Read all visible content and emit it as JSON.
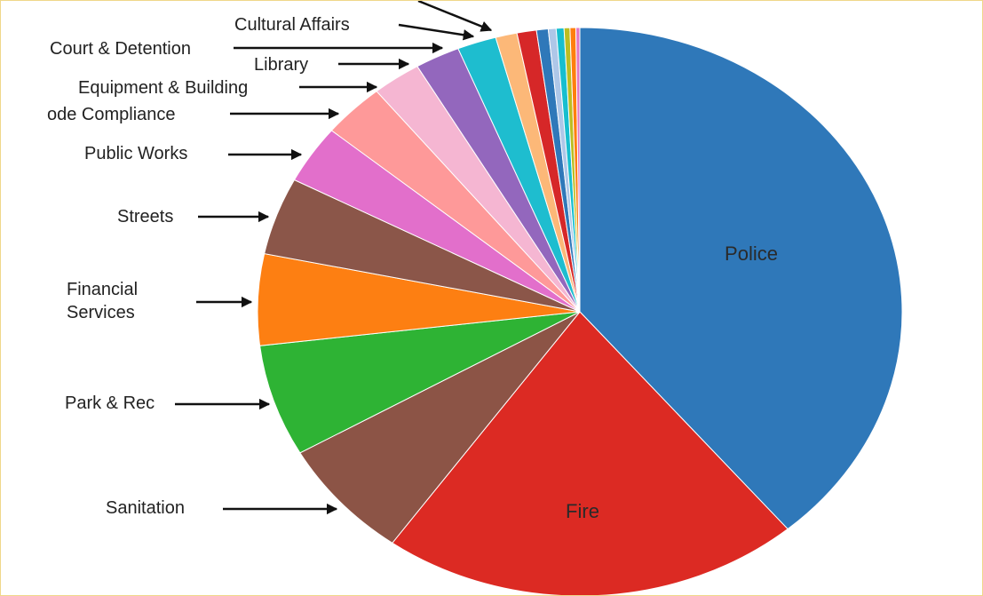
{
  "chart_data": {
    "type": "pie",
    "title": "",
    "slices": [
      {
        "label": "Police",
        "value": 39.7,
        "color": "#2f78b9",
        "label_placement": "inside"
      },
      {
        "label": "Fire",
        "value": 21.5,
        "color": "#dc2a23",
        "label_placement": "inside"
      },
      {
        "label": "Sanitation",
        "value": 7.0,
        "color": "#8c5446",
        "label_placement": "outside"
      },
      {
        "label": "Park & Rec",
        "value": 6.5,
        "color": "#2eb334",
        "label_placement": "outside"
      },
      {
        "label": "Financial Services",
        "value": 5.3,
        "color": "#fd7f12",
        "label_placement": "outside"
      },
      {
        "label": "Streets",
        "value": 4.5,
        "color": "#8b5649",
        "label_placement": "outside"
      },
      {
        "label": "Public Works",
        "value": 3.4,
        "color": "#e26fcb",
        "label_placement": "outside"
      },
      {
        "label": "ode Compliance",
        "value": 3.2,
        "color": "#fe9999",
        "label_placement": "outside"
      },
      {
        "label": "Equipment & Building",
        "value": 2.5,
        "color": "#f5b6d2",
        "label_placement": "outside"
      },
      {
        "label": "Library",
        "value": 2.3,
        "color": "#9367bd",
        "label_placement": "outside"
      },
      {
        "label": "Court & Detention",
        "value": 2.0,
        "color": "#1ebdcf",
        "label_placement": "outside"
      },
      {
        "label": "Cultural Affairs",
        "value": 1.1,
        "color": "#fcb878",
        "label_placement": "outside"
      },
      {
        "label": "",
        "value": 1.0,
        "color": "#d62728",
        "label_placement": "none"
      },
      {
        "label": "",
        "value": 0.6,
        "color": "#2f78b9",
        "label_placement": "none"
      },
      {
        "label": "",
        "value": 0.4,
        "color": "#aec7e8",
        "label_placement": "none"
      },
      {
        "label": "",
        "value": 0.4,
        "color": "#17becf",
        "label_placement": "none"
      },
      {
        "label": "",
        "value": 0.3,
        "color": "#bcbd22",
        "label_placement": "none"
      },
      {
        "label": "",
        "value": 0.3,
        "color": "#ff7f0e",
        "label_placement": "none"
      },
      {
        "label": "",
        "value": 0.2,
        "color": "#e377c2",
        "label_placement": "none"
      }
    ]
  }
}
